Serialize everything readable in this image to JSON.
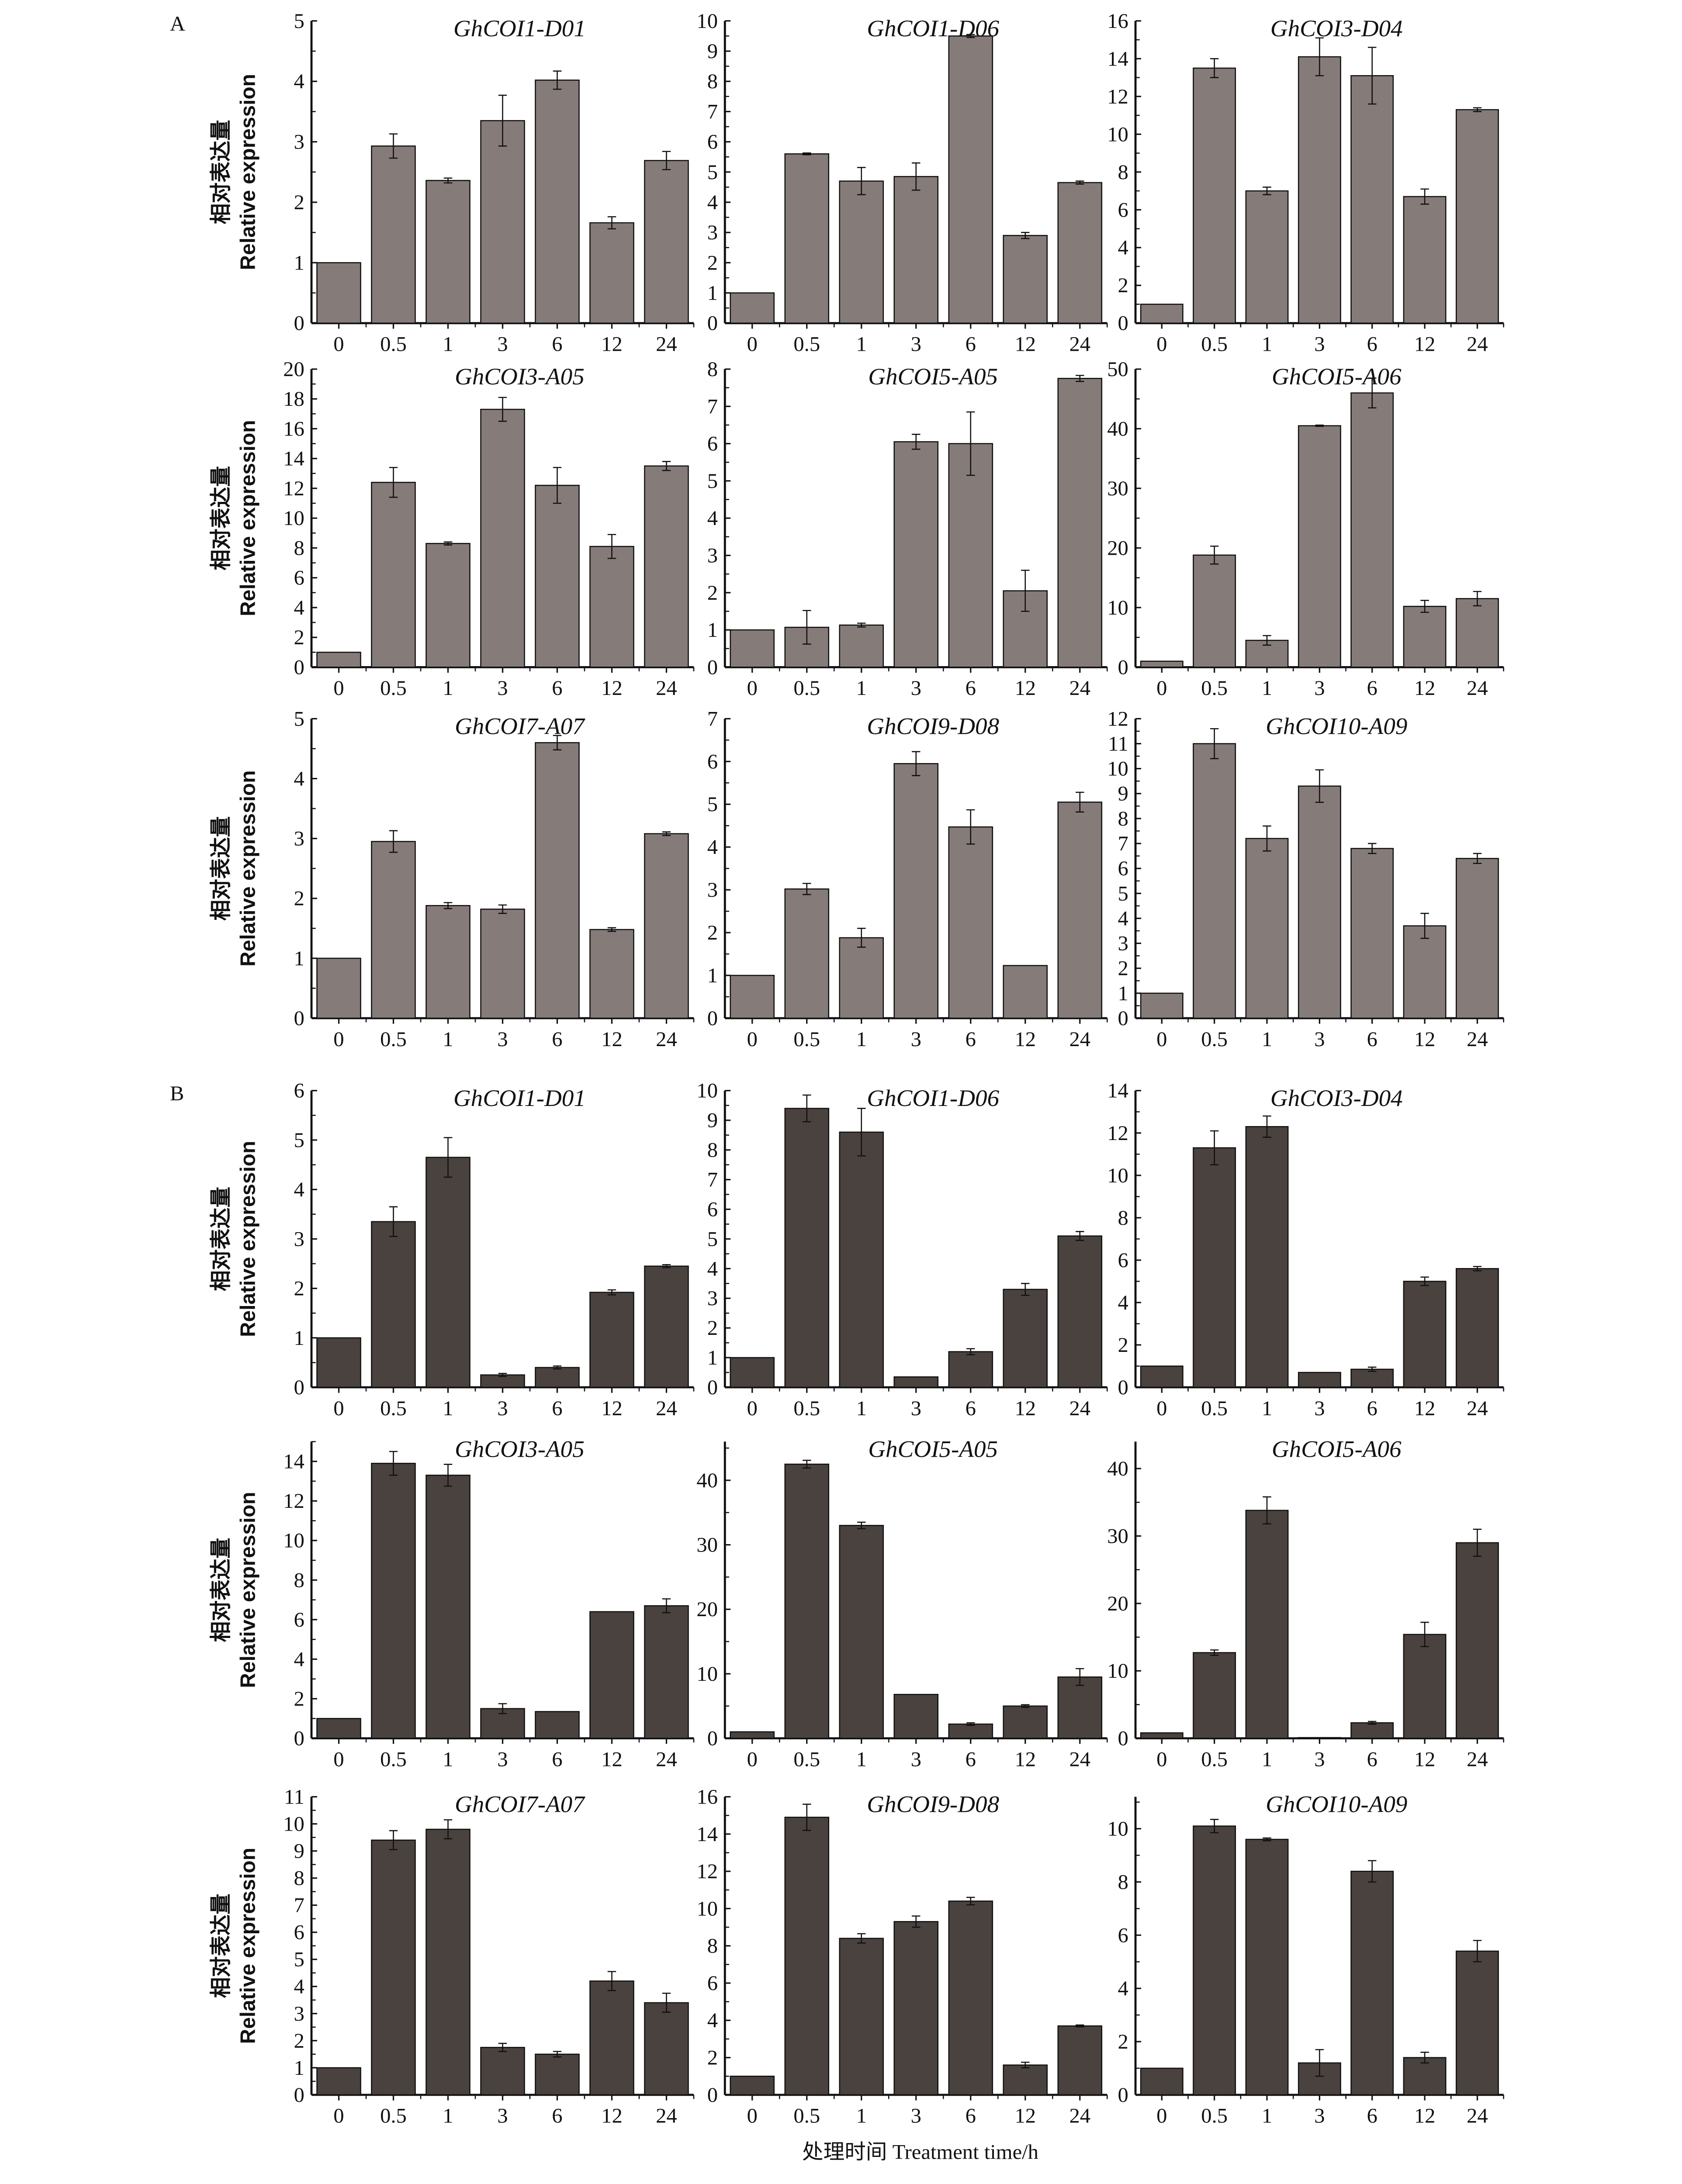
{
  "colors": {
    "A": "#857c7a",
    "B": "#4a423e",
    "axis": "#111111"
  },
  "chart_data": {
    "type": "bar",
    "categories": [
      "0",
      "0.5",
      "1",
      "3",
      "6",
      "12",
      "24"
    ],
    "xlabel": "处理时间 Treatment time/h",
    "ylabel_cn": "相对表达量",
    "ylabel_en": "Relative expression",
    "panel_letters": [
      "A",
      "B"
    ],
    "panels": [
      {
        "group": "A",
        "title": "GhCOI1-D01",
        "ylim": [
          0,
          5
        ],
        "tick_step": 1,
        "tick_max": 5,
        "values": [
          1,
          2.93,
          2.36,
          3.35,
          4.02,
          1.66,
          2.69
        ],
        "errors": [
          0,
          0.2,
          0.04,
          0.42,
          0.15,
          0.1,
          0.15
        ]
      },
      {
        "group": "A",
        "title": "GhCOI1-D06",
        "ylim": [
          0,
          10
        ],
        "tick_step": 1,
        "tick_max": 10,
        "values": [
          1,
          5.6,
          4.7,
          4.85,
          9.5,
          2.9,
          4.65
        ],
        "errors": [
          0,
          0.03,
          0.45,
          0.45,
          0.05,
          0.1,
          0.05
        ]
      },
      {
        "group": "A",
        "title": "GhCOI3-D04",
        "ylim": [
          0,
          16
        ],
        "tick_step": 2,
        "tick_max": 16,
        "values": [
          1,
          13.5,
          7,
          14.1,
          13.1,
          6.7,
          11.3
        ],
        "errors": [
          0,
          0.5,
          0.2,
          1.0,
          1.5,
          0.4,
          0.1
        ]
      },
      {
        "group": "A",
        "title": "GhCOI3-A05",
        "ylim": [
          0,
          20
        ],
        "tick_step": 2,
        "tick_max": 20,
        "values": [
          1,
          12.4,
          8.3,
          17.3,
          12.2,
          8.1,
          13.5
        ],
        "errors": [
          0,
          1.0,
          0.1,
          0.8,
          1.2,
          0.8,
          0.3
        ]
      },
      {
        "group": "A",
        "title": "GhCOI5-A05",
        "ylim": [
          0,
          8
        ],
        "tick_step": 1,
        "tick_max": 8,
        "values": [
          1,
          1.07,
          1.13,
          6.05,
          6.0,
          2.05,
          7.75
        ],
        "errors": [
          0,
          0.45,
          0.05,
          0.2,
          0.85,
          0.55,
          0.08
        ]
      },
      {
        "group": "A",
        "title": "GhCOI5-A06",
        "ylim": [
          0,
          50
        ],
        "tick_step": 10,
        "tick_max": 50,
        "values": [
          1,
          18.8,
          4.5,
          40.5,
          46,
          10.2,
          11.5
        ],
        "errors": [
          0,
          1.5,
          0.8,
          0.1,
          2.5,
          1.0,
          1.2
        ]
      },
      {
        "group": "A",
        "title": "GhCOI7-A07",
        "ylim": [
          0,
          5
        ],
        "tick_step": 1,
        "tick_max": 5,
        "values": [
          1,
          2.95,
          1.88,
          1.82,
          4.6,
          1.48,
          3.08
        ],
        "errors": [
          0,
          0.18,
          0.05,
          0.07,
          0.12,
          0.03,
          0.03
        ]
      },
      {
        "group": "A",
        "title": "GhCOI9-D08",
        "ylim": [
          0,
          7
        ],
        "tick_step": 1,
        "tick_max": 7,
        "values": [
          1,
          3.02,
          1.88,
          5.95,
          4.47,
          1.23,
          5.05
        ],
        "errors": [
          0,
          0.13,
          0.22,
          0.28,
          0.4,
          0,
          0.23
        ]
      },
      {
        "group": "A",
        "title": "GhCOI10-A09",
        "ylim": [
          0,
          12
        ],
        "tick_step": 1,
        "tick_max": 12,
        "values": [
          1,
          11,
          7.2,
          9.3,
          6.8,
          3.7,
          6.4
        ],
        "errors": [
          0,
          0.6,
          0.5,
          0.65,
          0.2,
          0.5,
          0.2
        ]
      },
      {
        "group": "B",
        "title": "GhCOI1-D01",
        "ylim": [
          0,
          6
        ],
        "tick_step": 1,
        "tick_max": 6,
        "values": [
          1,
          3.35,
          4.65,
          0.25,
          0.4,
          1.92,
          2.45
        ],
        "errors": [
          0,
          0.3,
          0.4,
          0.03,
          0.03,
          0.05,
          0.03
        ]
      },
      {
        "group": "B",
        "title": "GhCOI1-D06",
        "ylim": [
          0,
          10
        ],
        "tick_step": 1,
        "tick_max": 10,
        "values": [
          1,
          9.4,
          8.6,
          0.35,
          1.2,
          3.3,
          5.1
        ],
        "errors": [
          0,
          0.45,
          0.8,
          0,
          0.1,
          0.2,
          0.15
        ]
      },
      {
        "group": "B",
        "title": "GhCOI3-D04",
        "ylim": [
          0,
          14
        ],
        "tick_step": 2,
        "tick_max": 14,
        "values": [
          1,
          11.3,
          12.3,
          0.7,
          0.85,
          5.0,
          5.6
        ],
        "errors": [
          0,
          0.8,
          0.5,
          0,
          0.1,
          0.2,
          0.1
        ]
      },
      {
        "group": "B",
        "title": "GhCOI3-A05",
        "ylim": [
          0,
          15
        ],
        "tick_step": 2,
        "tick_max": 14,
        "values": [
          1,
          13.9,
          13.3,
          1.5,
          1.35,
          6.4,
          6.7
        ],
        "errors": [
          0,
          0.6,
          0.55,
          0.25,
          0,
          0,
          0.35
        ]
      },
      {
        "group": "B",
        "title": "GhCOI5-A05",
        "ylim": [
          0,
          46
        ],
        "tick_step": 10,
        "tick_max": 40,
        "values": [
          1,
          42.5,
          33,
          6.8,
          2.2,
          5.0,
          9.5
        ],
        "errors": [
          0,
          0.6,
          0.5,
          0,
          0.2,
          0.2,
          1.3
        ]
      },
      {
        "group": "B",
        "title": "GhCOI5-A06",
        "ylim": [
          0,
          44
        ],
        "tick_step": 10,
        "tick_max": 40,
        "values": [
          0.8,
          12.7,
          33.8,
          0.1,
          2.3,
          15.4,
          29
        ],
        "errors": [
          0,
          0.4,
          2.0,
          0,
          0.2,
          1.8,
          2.0
        ]
      },
      {
        "group": "B",
        "title": "GhCOI7-A07",
        "ylim": [
          0,
          11
        ],
        "tick_step": 1,
        "tick_max": 11,
        "values": [
          1,
          9.4,
          9.8,
          1.75,
          1.5,
          4.2,
          3.4
        ],
        "errors": [
          0,
          0.35,
          0.35,
          0.15,
          0.1,
          0.35,
          0.35
        ]
      },
      {
        "group": "B",
        "title": "GhCOI9-D08",
        "ylim": [
          0,
          16
        ],
        "tick_step": 2,
        "tick_max": 16,
        "values": [
          1,
          14.9,
          8.4,
          9.3,
          10.4,
          1.6,
          3.7
        ],
        "errors": [
          0,
          0.7,
          0.25,
          0.3,
          0.2,
          0.15,
          0.05
        ]
      },
      {
        "group": "B",
        "title": "GhCOI10-A09",
        "ylim": [
          0,
          11.2
        ],
        "tick_step": 2,
        "tick_max": 10,
        "values": [
          1,
          10.1,
          9.6,
          1.2,
          8.4,
          1.4,
          5.4
        ],
        "errors": [
          0,
          0.25,
          0.05,
          0.5,
          0.4,
          0.2,
          0.4
        ]
      }
    ]
  }
}
